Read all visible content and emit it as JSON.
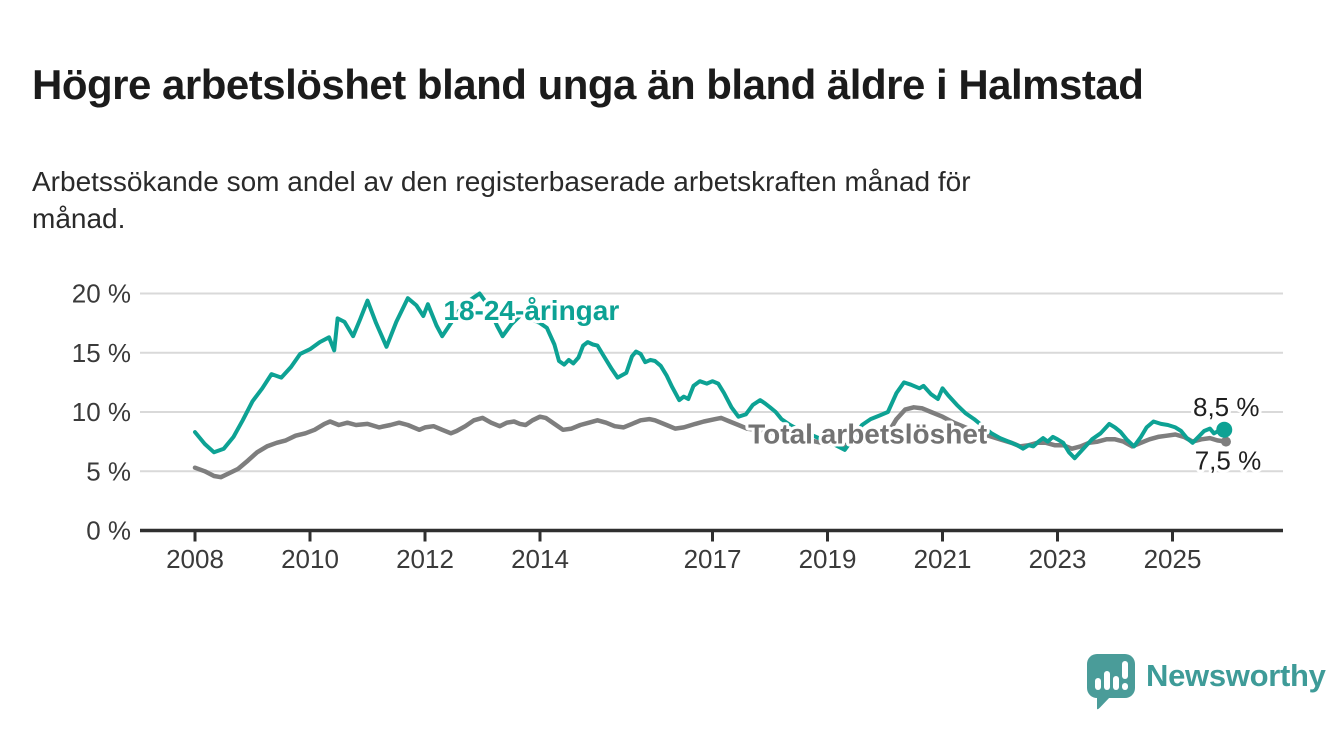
{
  "header": {
    "title": "Högre arbetslöshet bland unga än bland äldre i Halmstad",
    "subtitle": "Arbetssökande som andel av den registerbaserade arbetskraften månad för\nmånad."
  },
  "footer": {
    "brand": "Newsworthy",
    "brand_color": "#3E9B98",
    "logo_icon": "speech-bubble-bar-chart-icon"
  },
  "colors": {
    "accent_teal": "#0da294",
    "line_gray": "#7e7e7e",
    "label_gray": "#737373",
    "grid": "#d9d9d9",
    "axis": "#2f2f2f",
    "tick_text": "#3a3a3a",
    "value_text": "#1f1f1f"
  },
  "chart_data": {
    "type": "line",
    "title": "Högre arbetslöshet bland unga än bland äldre i Halmstad",
    "subtitle": "Arbetssökande som andel av den registerbaserade arbetskraften månad för månad.",
    "unit": "%",
    "grid": true,
    "legend_position": "inline-labels",
    "x_axis": {
      "tick_years": [
        2008,
        2010,
        2012,
        2014,
        2017,
        2019,
        2021,
        2023,
        2025
      ],
      "tick_labels": [
        "2008",
        "2010",
        "2012",
        "2014",
        "2017",
        "2019",
        "2021",
        "2023",
        "2025"
      ],
      "range": [
        2007.05,
        2026.9
      ]
    },
    "y_axis": {
      "tick_values": [
        0,
        5,
        10,
        15,
        20
      ],
      "tick_labels": [
        "0 %",
        "5 %",
        "10 %",
        "15 %",
        "20 %"
      ],
      "range": [
        0,
        21.5
      ]
    },
    "series": [
      {
        "name": "Total arbetslöshet",
        "color": "#7e7e7e",
        "label_color": "#737373",
        "label_anchor": {
          "year": 2017.62,
          "pct": 8.2
        },
        "end_dot_radius": 5,
        "end_label": "7,5 %",
        "end_label_side": "below",
        "end_value": 7.5,
        "points": [
          [
            2008.0,
            5.3
          ],
          [
            2008.17,
            5.0
          ],
          [
            2008.33,
            4.6
          ],
          [
            2008.45,
            4.5
          ],
          [
            2008.58,
            4.8
          ],
          [
            2008.75,
            5.2
          ],
          [
            2008.92,
            5.9
          ],
          [
            2009.08,
            6.6
          ],
          [
            2009.25,
            7.1
          ],
          [
            2009.42,
            7.4
          ],
          [
            2009.58,
            7.6
          ],
          [
            2009.75,
            8.0
          ],
          [
            2009.92,
            8.2
          ],
          [
            2010.08,
            8.5
          ],
          [
            2010.25,
            9.0
          ],
          [
            2010.35,
            9.2
          ],
          [
            2010.5,
            8.9
          ],
          [
            2010.65,
            9.1
          ],
          [
            2010.8,
            8.9
          ],
          [
            2011.0,
            9.0
          ],
          [
            2011.2,
            8.7
          ],
          [
            2011.4,
            8.9
          ],
          [
            2011.55,
            9.1
          ],
          [
            2011.7,
            8.9
          ],
          [
            2011.9,
            8.5
          ],
          [
            2012.0,
            8.7
          ],
          [
            2012.15,
            8.8
          ],
          [
            2012.3,
            8.5
          ],
          [
            2012.45,
            8.2
          ],
          [
            2012.55,
            8.4
          ],
          [
            2012.7,
            8.8
          ],
          [
            2012.85,
            9.3
          ],
          [
            2013.0,
            9.5
          ],
          [
            2013.15,
            9.1
          ],
          [
            2013.3,
            8.8
          ],
          [
            2013.42,
            9.1
          ],
          [
            2013.55,
            9.2
          ],
          [
            2013.65,
            9.0
          ],
          [
            2013.75,
            8.9
          ],
          [
            2013.87,
            9.3
          ],
          [
            2014.0,
            9.6
          ],
          [
            2014.1,
            9.5
          ],
          [
            2014.25,
            9.0
          ],
          [
            2014.4,
            8.5
          ],
          [
            2014.55,
            8.6
          ],
          [
            2014.7,
            8.9
          ],
          [
            2014.85,
            9.1
          ],
          [
            2015.0,
            9.3
          ],
          [
            2015.15,
            9.1
          ],
          [
            2015.3,
            8.8
          ],
          [
            2015.45,
            8.7
          ],
          [
            2015.6,
            9.0
          ],
          [
            2015.75,
            9.3
          ],
          [
            2015.9,
            9.4
          ],
          [
            2016.0,
            9.3
          ],
          [
            2016.2,
            8.9
          ],
          [
            2016.35,
            8.6
          ],
          [
            2016.5,
            8.7
          ],
          [
            2016.7,
            9.0
          ],
          [
            2016.85,
            9.2
          ],
          [
            2017.05,
            9.4
          ],
          [
            2017.15,
            9.5
          ],
          [
            2017.3,
            9.2
          ],
          [
            2017.45,
            8.9
          ],
          [
            2017.6,
            8.6
          ],
          [
            2017.75,
            8.5
          ],
          [
            2017.9,
            8.3
          ],
          [
            2018.1,
            8.2
          ],
          [
            2018.3,
            8.0
          ],
          [
            2018.5,
            7.8
          ],
          [
            2018.7,
            7.6
          ],
          [
            2018.9,
            7.4
          ],
          [
            2019.1,
            7.3
          ],
          [
            2019.3,
            7.2
          ],
          [
            2019.5,
            7.4
          ],
          [
            2019.7,
            7.6
          ],
          [
            2019.9,
            7.8
          ],
          [
            2020.05,
            8.2
          ],
          [
            2020.2,
            9.4
          ],
          [
            2020.35,
            10.2
          ],
          [
            2020.5,
            10.4
          ],
          [
            2020.65,
            10.3
          ],
          [
            2020.8,
            10.0
          ],
          [
            2021.0,
            9.6
          ],
          [
            2021.2,
            9.1
          ],
          [
            2021.4,
            8.7
          ],
          [
            2021.6,
            8.3
          ],
          [
            2021.8,
            8.0
          ],
          [
            2022.0,
            7.7
          ],
          [
            2022.2,
            7.4
          ],
          [
            2022.35,
            7.1
          ],
          [
            2022.5,
            7.2
          ],
          [
            2022.65,
            7.4
          ],
          [
            2022.8,
            7.4
          ],
          [
            2022.95,
            7.2
          ],
          [
            2023.1,
            7.2
          ],
          [
            2023.25,
            6.9
          ],
          [
            2023.4,
            7.1
          ],
          [
            2023.55,
            7.4
          ],
          [
            2023.7,
            7.5
          ],
          [
            2023.85,
            7.7
          ],
          [
            2024.0,
            7.7
          ],
          [
            2024.15,
            7.5
          ],
          [
            2024.3,
            7.1
          ],
          [
            2024.45,
            7.4
          ],
          [
            2024.6,
            7.7
          ],
          [
            2024.75,
            7.9
          ],
          [
            2024.9,
            8.0
          ],
          [
            2025.05,
            8.1
          ],
          [
            2025.2,
            7.9
          ],
          [
            2025.35,
            7.5
          ],
          [
            2025.5,
            7.7
          ],
          [
            2025.65,
            7.8
          ],
          [
            2025.78,
            7.6
          ],
          [
            2025.93,
            7.5
          ]
        ]
      },
      {
        "name": "18-24-åringar",
        "color": "#0da294",
        "label_color": "#0da294",
        "label_anchor": {
          "year": 2012.32,
          "pct": 18.6
        },
        "end_dot_radius": 8,
        "end_label": "8,5 %",
        "end_label_side": "above",
        "end_value": 8.5,
        "points": [
          [
            2008.0,
            8.3
          ],
          [
            2008.17,
            7.3
          ],
          [
            2008.33,
            6.6
          ],
          [
            2008.5,
            6.9
          ],
          [
            2008.67,
            7.9
          ],
          [
            2008.83,
            9.3
          ],
          [
            2009.0,
            10.9
          ],
          [
            2009.17,
            12.0
          ],
          [
            2009.33,
            13.2
          ],
          [
            2009.5,
            12.9
          ],
          [
            2009.67,
            13.8
          ],
          [
            2009.83,
            14.9
          ],
          [
            2010.0,
            15.3
          ],
          [
            2010.17,
            15.9
          ],
          [
            2010.33,
            16.3
          ],
          [
            2010.42,
            15.2
          ],
          [
            2010.48,
            17.9
          ],
          [
            2010.6,
            17.6
          ],
          [
            2010.75,
            16.4
          ],
          [
            2010.87,
            17.8
          ],
          [
            2011.0,
            19.4
          ],
          [
            2011.15,
            17.5
          ],
          [
            2011.33,
            15.5
          ],
          [
            2011.5,
            17.6
          ],
          [
            2011.7,
            19.6
          ],
          [
            2011.85,
            19.0
          ],
          [
            2011.97,
            18.1
          ],
          [
            2012.05,
            19.1
          ],
          [
            2012.2,
            17.3
          ],
          [
            2012.3,
            16.4
          ],
          [
            2012.45,
            17.5
          ],
          [
            2012.6,
            18.6
          ],
          [
            2012.8,
            19.5
          ],
          [
            2012.95,
            20.0
          ],
          [
            2013.1,
            19.0
          ],
          [
            2013.25,
            17.3
          ],
          [
            2013.35,
            16.4
          ],
          [
            2013.5,
            17.4
          ],
          [
            2013.67,
            18.2
          ],
          [
            2013.83,
            17.9
          ],
          [
            2014.0,
            17.5
          ],
          [
            2014.12,
            17.1
          ],
          [
            2014.25,
            15.7
          ],
          [
            2014.33,
            14.3
          ],
          [
            2014.42,
            14.0
          ],
          [
            2014.5,
            14.4
          ],
          [
            2014.58,
            14.1
          ],
          [
            2014.67,
            14.6
          ],
          [
            2014.75,
            15.6
          ],
          [
            2014.83,
            15.9
          ],
          [
            2014.92,
            15.7
          ],
          [
            2015.0,
            15.6
          ],
          [
            2015.1,
            14.8
          ],
          [
            2015.25,
            13.6
          ],
          [
            2015.35,
            12.9
          ],
          [
            2015.5,
            13.3
          ],
          [
            2015.6,
            14.7
          ],
          [
            2015.67,
            15.1
          ],
          [
            2015.75,
            14.9
          ],
          [
            2015.83,
            14.2
          ],
          [
            2015.92,
            14.4
          ],
          [
            2016.0,
            14.3
          ],
          [
            2016.1,
            13.9
          ],
          [
            2016.2,
            13.1
          ],
          [
            2016.3,
            12.1
          ],
          [
            2016.42,
            11.0
          ],
          [
            2016.5,
            11.3
          ],
          [
            2016.58,
            11.1
          ],
          [
            2016.67,
            12.2
          ],
          [
            2016.78,
            12.6
          ],
          [
            2016.9,
            12.4
          ],
          [
            2017.0,
            12.6
          ],
          [
            2017.1,
            12.4
          ],
          [
            2017.2,
            11.6
          ],
          [
            2017.33,
            10.4
          ],
          [
            2017.45,
            9.6
          ],
          [
            2017.58,
            9.8
          ],
          [
            2017.7,
            10.6
          ],
          [
            2017.83,
            11.0
          ],
          [
            2017.92,
            10.7
          ],
          [
            2018.0,
            10.4
          ],
          [
            2018.1,
            10.0
          ],
          [
            2018.2,
            9.4
          ],
          [
            2018.35,
            8.9
          ],
          [
            2018.5,
            8.5
          ],
          [
            2018.7,
            8.1
          ],
          [
            2018.9,
            7.7
          ],
          [
            2019.1,
            7.3
          ],
          [
            2019.3,
            6.8
          ],
          [
            2019.45,
            7.8
          ],
          [
            2019.6,
            8.9
          ],
          [
            2019.75,
            9.4
          ],
          [
            2019.9,
            9.7
          ],
          [
            2020.05,
            10.0
          ],
          [
            2020.2,
            11.6
          ],
          [
            2020.33,
            12.5
          ],
          [
            2020.45,
            12.3
          ],
          [
            2020.6,
            12.0
          ],
          [
            2020.67,
            12.2
          ],
          [
            2020.8,
            11.5
          ],
          [
            2020.92,
            11.1
          ],
          [
            2021.0,
            12.0
          ],
          [
            2021.1,
            11.4
          ],
          [
            2021.25,
            10.6
          ],
          [
            2021.4,
            9.9
          ],
          [
            2021.55,
            9.4
          ],
          [
            2021.7,
            8.8
          ],
          [
            2021.85,
            8.2
          ],
          [
            2022.0,
            7.8
          ],
          [
            2022.15,
            7.5
          ],
          [
            2022.3,
            7.2
          ],
          [
            2022.4,
            6.9
          ],
          [
            2022.5,
            7.2
          ],
          [
            2022.58,
            7.1
          ],
          [
            2022.67,
            7.5
          ],
          [
            2022.75,
            7.8
          ],
          [
            2022.83,
            7.5
          ],
          [
            2022.92,
            7.9
          ],
          [
            2023.0,
            7.7
          ],
          [
            2023.1,
            7.4
          ],
          [
            2023.2,
            6.6
          ],
          [
            2023.3,
            6.1
          ],
          [
            2023.45,
            6.9
          ],
          [
            2023.6,
            7.7
          ],
          [
            2023.75,
            8.2
          ],
          [
            2023.9,
            9.0
          ],
          [
            2024.0,
            8.7
          ],
          [
            2024.1,
            8.3
          ],
          [
            2024.2,
            7.7
          ],
          [
            2024.33,
            7.1
          ],
          [
            2024.45,
            7.9
          ],
          [
            2024.55,
            8.7
          ],
          [
            2024.67,
            9.2
          ],
          [
            2024.8,
            9.0
          ],
          [
            2024.92,
            8.9
          ],
          [
            2025.05,
            8.7
          ],
          [
            2025.15,
            8.4
          ],
          [
            2025.25,
            7.8
          ],
          [
            2025.35,
            7.4
          ],
          [
            2025.45,
            7.9
          ],
          [
            2025.55,
            8.4
          ],
          [
            2025.65,
            8.6
          ],
          [
            2025.72,
            8.2
          ],
          [
            2025.8,
            8.4
          ],
          [
            2025.9,
            8.5
          ]
        ]
      }
    ]
  }
}
